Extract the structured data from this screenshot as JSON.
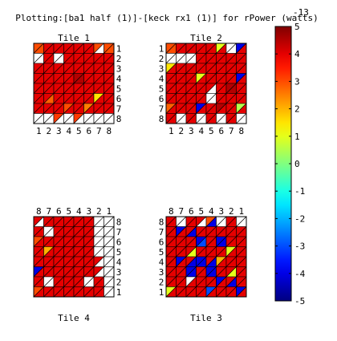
{
  "title": "Plotting:[ba1 half (1)]-[keck rx1 (1)] for rPower (watts)",
  "chart_data": {
    "type": "heatmap",
    "title": "Plotting:[ba1 half (1)]-[keck rx1 (1)] for rPower (watts)",
    "units": "rPower (watts)",
    "grid": true,
    "colorbar": {
      "min": -5,
      "max": 5,
      "ticks": [
        5,
        4,
        3,
        2,
        1,
        0,
        -1,
        -2,
        -3,
        -4,
        -5
      ],
      "exponent_label": "-13",
      "colormap": "jet"
    },
    "cell_encoding": "each cell is split by its main diagonal into an upper-left triangle (first value) and lower-right triangle (second value); null = blank/white",
    "tiles": [
      {
        "name": "Tile 1",
        "col_labels": [
          "1",
          "2",
          "3",
          "4",
          "5",
          "6",
          "7",
          "8"
        ],
        "row_labels": [
          "1",
          "2",
          "3",
          "4",
          "5",
          "6",
          "7",
          "8"
        ],
        "cells": [
          [
            [
              3,
              3
            ],
            [
              4,
              4
            ],
            [
              4,
              4
            ],
            [
              4,
              4
            ],
            [
              4,
              4
            ],
            [
              4,
              4
            ],
            [
              3,
              null
            ],
            [
              3,
              3
            ]
          ],
          [
            [
              null,
              null
            ],
            [
              4,
              4
            ],
            [
              null,
              null
            ],
            [
              4,
              4
            ],
            [
              4,
              4
            ],
            [
              4,
              4
            ],
            [
              4,
              4
            ],
            [
              4,
              4
            ]
          ],
          [
            [
              4,
              4
            ],
            [
              4,
              4
            ],
            [
              4,
              4
            ],
            [
              4,
              4
            ],
            [
              4,
              4
            ],
            [
              4,
              4
            ],
            [
              4,
              4
            ],
            [
              4,
              4
            ]
          ],
          [
            [
              4,
              4
            ],
            [
              4,
              4
            ],
            [
              4,
              4
            ],
            [
              4,
              4
            ],
            [
              4.5,
              4.5
            ],
            [
              4,
              4
            ],
            [
              4,
              4
            ],
            [
              4,
              4
            ]
          ],
          [
            [
              4,
              4
            ],
            [
              4,
              4
            ],
            [
              4,
              4
            ],
            [
              4,
              4
            ],
            [
              4,
              4
            ],
            [
              4,
              4
            ],
            [
              4,
              4
            ],
            [
              4,
              4
            ]
          ],
          [
            [
              4,
              4
            ],
            [
              4,
              2.8
            ],
            [
              4,
              4
            ],
            [
              4,
              4
            ],
            [
              4,
              4
            ],
            [
              4,
              4
            ],
            [
              1.5,
              4
            ],
            [
              4,
              4
            ]
          ],
          [
            [
              4,
              4
            ],
            [
              4,
              4
            ],
            [
              4,
              4
            ],
            [
              3,
              4
            ],
            [
              4,
              4
            ],
            [
              2.5,
              4
            ],
            [
              4,
              4
            ],
            [
              4,
              4
            ]
          ],
          [
            [
              null,
              null
            ],
            [
              null,
              null
            ],
            [
              3.2,
              null
            ],
            [
              null,
              null
            ],
            [
              3.2,
              null
            ],
            [
              null,
              null
            ],
            [
              null,
              null
            ],
            [
              null,
              null
            ]
          ]
        ]
      },
      {
        "name": "Tile 2",
        "col_labels": [
          "1",
          "2",
          "3",
          "4",
          "5",
          "6",
          "7",
          "8"
        ],
        "row_labels": [
          "1",
          "2",
          "3",
          "4",
          "5",
          "6",
          "7",
          "8"
        ],
        "cells": [
          [
            [
              3,
              3
            ],
            [
              4,
              4
            ],
            [
              4,
              4
            ],
            [
              4,
              4
            ],
            [
              4,
              4
            ],
            [
              1,
              4
            ],
            [
              null,
              null
            ],
            [
              -4,
              4
            ]
          ],
          [
            [
              null,
              null
            ],
            [
              null,
              null
            ],
            [
              null,
              null
            ],
            [
              4,
              4
            ],
            [
              4,
              4
            ],
            [
              4,
              4
            ],
            [
              4,
              4
            ],
            [
              4,
              4
            ]
          ],
          [
            [
              1.5,
              4
            ],
            [
              4,
              4
            ],
            [
              4,
              4
            ],
            [
              4,
              4
            ],
            [
              4,
              4
            ],
            [
              4,
              4
            ],
            [
              4,
              4
            ],
            [
              4,
              4
            ]
          ],
          [
            [
              4,
              4
            ],
            [
              4,
              4
            ],
            [
              4,
              4
            ],
            [
              1,
              4
            ],
            [
              4,
              4
            ],
            [
              4,
              4
            ],
            [
              4,
              4
            ],
            [
              -4,
              4
            ]
          ],
          [
            [
              4,
              4
            ],
            [
              4,
              4
            ],
            [
              4,
              4
            ],
            [
              4,
              4
            ],
            [
              4,
              null
            ],
            [
              4,
              4
            ],
            [
              4.5,
              4.5
            ],
            [
              4,
              4
            ]
          ],
          [
            [
              4,
              4
            ],
            [
              4,
              4
            ],
            [
              4,
              4
            ],
            [
              4,
              4
            ],
            [
              null,
              null
            ],
            [
              4,
              4
            ],
            [
              4,
              4
            ],
            [
              4,
              4
            ]
          ],
          [
            [
              2.8,
              4
            ],
            [
              4,
              4
            ],
            [
              4,
              4
            ],
            [
              -4,
              4
            ],
            [
              4,
              4
            ],
            [
              4.5,
              4
            ],
            [
              4,
              4
            ],
            [
              0.5,
              4
            ]
          ],
          [
            [
              4,
              4
            ],
            [
              null,
              null
            ],
            [
              4,
              4
            ],
            [
              null,
              null
            ],
            [
              4,
              4
            ],
            [
              null,
              null
            ],
            [
              4,
              4
            ],
            [
              null,
              null
            ]
          ]
        ]
      },
      {
        "name": "Tile 4",
        "col_labels": [
          "8",
          "7",
          "6",
          "5",
          "4",
          "3",
          "2",
          "1"
        ],
        "row_labels": [
          "8",
          "7",
          "6",
          "5",
          "4",
          "3",
          "2",
          "1"
        ],
        "cells": [
          [
            [
              4,
              null
            ],
            [
              4,
              4
            ],
            [
              4,
              4
            ],
            [
              4,
              4
            ],
            [
              4,
              4
            ],
            [
              4,
              4
            ],
            [
              null,
              null
            ],
            [
              null,
              null
            ]
          ],
          [
            [
              4,
              4
            ],
            [
              null,
              null
            ],
            [
              4,
              4
            ],
            [
              4,
              4
            ],
            [
              4,
              4
            ],
            [
              4,
              4
            ],
            [
              null,
              null
            ],
            [
              null,
              null
            ]
          ],
          [
            [
              3,
              4
            ],
            [
              4,
              4
            ],
            [
              4,
              4
            ],
            [
              4,
              4
            ],
            [
              4,
              4
            ],
            [
              4,
              4
            ],
            [
              null,
              null
            ],
            [
              null,
              null
            ]
          ],
          [
            [
              4,
              4
            ],
            [
              2,
              4
            ],
            [
              4,
              4
            ],
            [
              4,
              4
            ],
            [
              4,
              4
            ],
            [
              4,
              4
            ],
            [
              null,
              null
            ],
            [
              null,
              null
            ]
          ],
          [
            [
              4,
              4
            ],
            [
              4,
              4
            ],
            [
              4,
              4
            ],
            [
              4,
              4
            ],
            [
              4,
              4
            ],
            [
              4,
              4
            ],
            [
              4,
              null
            ],
            [
              null,
              null
            ]
          ],
          [
            [
              -4,
              4
            ],
            [
              4,
              4
            ],
            [
              4,
              4
            ],
            [
              4,
              4
            ],
            [
              4,
              4
            ],
            [
              4,
              4
            ],
            [
              4,
              null
            ],
            [
              null,
              null
            ]
          ],
          [
            [
              4,
              4
            ],
            [
              null,
              null
            ],
            [
              4,
              4
            ],
            [
              4,
              4
            ],
            [
              4,
              4
            ],
            [
              null,
              null
            ],
            [
              4,
              4
            ],
            [
              null,
              null
            ]
          ],
          [
            [
              3,
              4
            ],
            [
              4,
              4
            ],
            [
              4,
              4
            ],
            [
              4,
              4
            ],
            [
              4,
              4
            ],
            [
              4,
              4
            ],
            [
              4,
              4
            ],
            [
              null,
              null
            ]
          ]
        ]
      },
      {
        "name": "Tile 3",
        "col_labels": [
          "8",
          "7",
          "6",
          "5",
          "4",
          "3",
          "2",
          "1"
        ],
        "row_labels": [
          "8",
          "7",
          "6",
          "5",
          "4",
          "3",
          "2",
          "1"
        ],
        "cells": [
          [
            [
              4,
              4
            ],
            [
              null,
              null
            ],
            [
              4,
              4
            ],
            [
              4,
              null
            ],
            [
              3,
              -4
            ],
            [
              null,
              null
            ],
            [
              4,
              4
            ],
            [
              null,
              null
            ]
          ],
          [
            [
              4,
              4
            ],
            [
              -4,
              4
            ],
            [
              4,
              -4
            ],
            [
              4,
              4
            ],
            [
              4,
              4
            ],
            [
              4,
              4
            ],
            [
              4,
              4
            ],
            [
              4,
              4
            ]
          ],
          [
            [
              4,
              4
            ],
            [
              4,
              4
            ],
            [
              4,
              4
            ],
            [
              -4,
              -3
            ],
            [
              4,
              4
            ],
            [
              -4,
              -4
            ],
            [
              4,
              4
            ],
            [
              4,
              4
            ]
          ],
          [
            [
              4,
              4
            ],
            [
              4,
              4
            ],
            [
              4,
              1
            ],
            [
              4,
              4
            ],
            [
              4,
              4
            ],
            [
              4,
              4
            ],
            [
              1,
              4
            ],
            [
              4,
              4
            ]
          ],
          [
            [
              4,
              4
            ],
            [
              -4,
              4
            ],
            [
              4,
              -4
            ],
            [
              -4,
              -4
            ],
            [
              4,
              -4
            ],
            [
              2,
              4
            ],
            [
              4,
              4
            ],
            [
              4,
              4
            ]
          ],
          [
            [
              4,
              4
            ],
            [
              4,
              4
            ],
            [
              -4,
              -4
            ],
            [
              4,
              4
            ],
            [
              -4,
              -4
            ],
            [
              4,
              4
            ],
            [
              4,
              1
            ],
            [
              4,
              4
            ]
          ],
          [
            [
              4,
              4
            ],
            [
              4,
              4
            ],
            [
              null,
              4
            ],
            [
              4,
              4
            ],
            [
              4,
              4
            ],
            [
              -4,
              4
            ],
            [
              4,
              -4
            ],
            [
              4,
              4
            ]
          ],
          [
            [
              1,
              4
            ],
            [
              4,
              4
            ],
            [
              4,
              4
            ],
            [
              4,
              4
            ],
            [
              -3,
              4
            ],
            [
              4,
              4
            ],
            [
              4,
              4
            ],
            [
              -4,
              4
            ]
          ]
        ]
      }
    ]
  }
}
